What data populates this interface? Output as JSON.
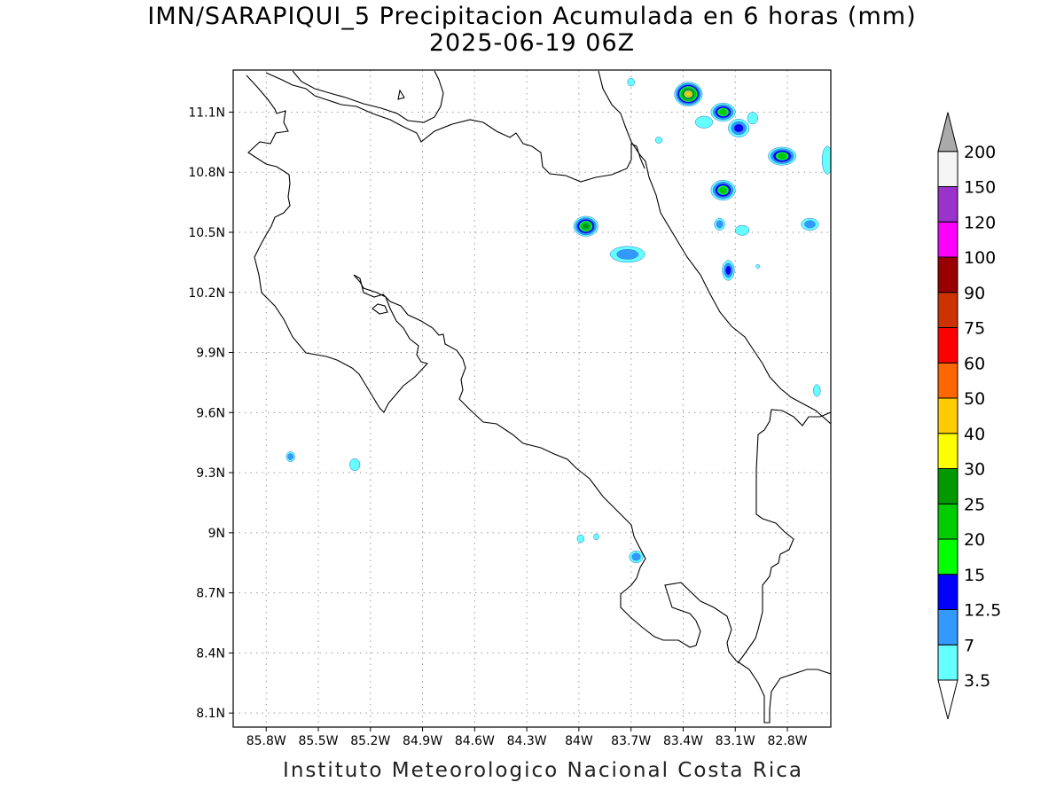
{
  "title": "IMN/SARAPIQUI_5 Precipitacion Acumulada en 6 horas (mm)",
  "subtitle": "2025-06-19 06Z",
  "footer": "Instituto Meteorologico Nacional Costa Rica",
  "chart_data": {
    "type": "heatmap",
    "title": "IMN/SARAPIQUI_5 Precipitacion Acumulada en 6 horas (mm)",
    "subtitle": "2025-06-19 06Z",
    "x_ticks": [
      "85.8W",
      "85.5W",
      "85.2W",
      "84.9W",
      "84.6W",
      "84.3W",
      "84W",
      "83.7W",
      "83.4W",
      "83.1W",
      "82.8W"
    ],
    "x_tick_values": [
      -85.8,
      -85.5,
      -85.2,
      -84.9,
      -84.6,
      -84.3,
      -84.0,
      -83.7,
      -83.4,
      -83.1,
      -82.8
    ],
    "y_ticks": [
      "8.1N",
      "8.4N",
      "8.7N",
      "9N",
      "9.3N",
      "9.6N",
      "9.9N",
      "10.2N",
      "10.5N",
      "10.8N",
      "11.1N"
    ],
    "y_tick_values": [
      8.1,
      8.4,
      8.7,
      9.0,
      9.3,
      9.6,
      9.9,
      10.2,
      10.5,
      10.8,
      11.1
    ],
    "xlim": [
      -85.99,
      -82.55
    ],
    "ylim": [
      8.03,
      11.31
    ],
    "grid": true,
    "colorbar": {
      "labels": [
        "3.5",
        "7",
        "12.5",
        "15",
        "20",
        "25",
        "30",
        "40",
        "50",
        "60",
        "75",
        "90",
        "100",
        "120",
        "150",
        "200"
      ],
      "colors": [
        "#66ffff",
        "#3399ff",
        "#0000ff",
        "#00ff00",
        "#00cc00",
        "#009900",
        "#ffff00",
        "#ffcc00",
        "#ff6600",
        "#ff0000",
        "#cc3300",
        "#990000",
        "#ff00ff",
        "#9933cc",
        "#f5f5f5",
        "#aaaaaa"
      ]
    },
    "rain_cells": [
      {
        "lon": -83.37,
        "lat": 11.19,
        "rx": 0.08,
        "ry": 0.06,
        "max": 40
      },
      {
        "lon": -83.17,
        "lat": 11.1,
        "rx": 0.07,
        "ry": 0.045,
        "max": 20
      },
      {
        "lon": -83.08,
        "lat": 11.02,
        "rx": 0.06,
        "ry": 0.045,
        "max": 12.5
      },
      {
        "lon": -83.28,
        "lat": 11.05,
        "rx": 0.05,
        "ry": 0.03,
        "max": 3.5
      },
      {
        "lon": -83.0,
        "lat": 11.07,
        "rx": 0.03,
        "ry": 0.03,
        "max": 3.5
      },
      {
        "lon": -82.83,
        "lat": 10.88,
        "rx": 0.08,
        "ry": 0.045,
        "max": 20
      },
      {
        "lon": -83.17,
        "lat": 10.71,
        "rx": 0.07,
        "ry": 0.05,
        "max": 20
      },
      {
        "lon": -83.96,
        "lat": 10.53,
        "rx": 0.07,
        "ry": 0.05,
        "max": 25
      },
      {
        "lon": -83.72,
        "lat": 10.39,
        "rx": 0.1,
        "ry": 0.04,
        "max": 7
      },
      {
        "lon": -83.19,
        "lat": 10.54,
        "rx": 0.03,
        "ry": 0.03,
        "max": 7
      },
      {
        "lon": -83.06,
        "lat": 10.51,
        "rx": 0.04,
        "ry": 0.025,
        "max": 3.5
      },
      {
        "lon": -83.14,
        "lat": 10.31,
        "rx": 0.035,
        "ry": 0.05,
        "max": 12.5
      },
      {
        "lon": -82.67,
        "lat": 10.54,
        "rx": 0.05,
        "ry": 0.03,
        "max": 7
      },
      {
        "lon": -82.57,
        "lat": 10.86,
        "rx": 0.03,
        "ry": 0.07,
        "max": 3.5
      },
      {
        "lon": -83.7,
        "lat": 11.25,
        "rx": 0.02,
        "ry": 0.02,
        "max": 3.5
      },
      {
        "lon": -83.54,
        "lat": 10.96,
        "rx": 0.02,
        "ry": 0.015,
        "max": 3.5
      },
      {
        "lon": -82.97,
        "lat": 10.33,
        "rx": 0.01,
        "ry": 0.01,
        "max": 3.5
      },
      {
        "lon": -82.63,
        "lat": 9.71,
        "rx": 0.02,
        "ry": 0.03,
        "max": 3.5
      },
      {
        "lon": -85.66,
        "lat": 9.38,
        "rx": 0.025,
        "ry": 0.025,
        "max": 7
      },
      {
        "lon": -85.29,
        "lat": 9.34,
        "rx": 0.03,
        "ry": 0.03,
        "max": 3.5
      },
      {
        "lon": -83.99,
        "lat": 8.97,
        "rx": 0.02,
        "ry": 0.02,
        "max": 3.5
      },
      {
        "lon": -83.9,
        "lat": 8.98,
        "rx": 0.015,
        "ry": 0.015,
        "max": 3.5
      },
      {
        "lon": -83.67,
        "lat": 8.88,
        "rx": 0.04,
        "ry": 0.03,
        "max": 7
      }
    ]
  }
}
